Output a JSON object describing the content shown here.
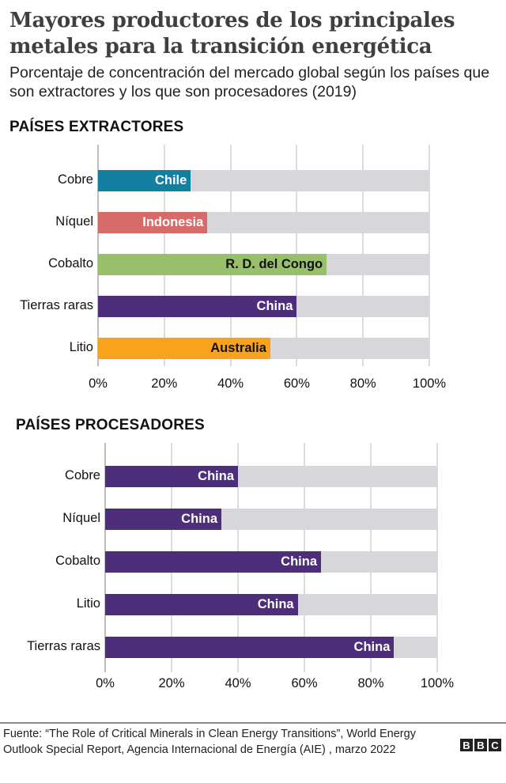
{
  "header": {
    "title": "Mayores productores de los principales metales para la transición energética",
    "subtitle": "Porcentaje de concentración del mercado global según los países que son extractores y los que son procesadores (2019)"
  },
  "sections": {
    "extractors": "PAÍSES EXTRACTORES",
    "processors": "PAÍSES PROCESADORES"
  },
  "colors": {
    "track": "#d6d6db",
    "chile": "#1380a1",
    "indonesia": "#d66b6a",
    "congo": "#98c06b",
    "china": "#4c2e7b",
    "australia": "#faa21b"
  },
  "chart_data": [
    {
      "type": "bar",
      "orientation": "horizontal",
      "title": "PAÍSES EXTRACTORES",
      "categories": [
        "Cobre",
        "Níquel",
        "Cobalto",
        "Tierras raras",
        "Litio"
      ],
      "values": [
        28,
        33,
        69,
        60,
        52
      ],
      "bar_labels": [
        "Chile",
        "Indonesia",
        "R. D. del Congo",
        "China",
        "Australia"
      ],
      "xlabel": "",
      "ylabel": "",
      "xlim": [
        0,
        100
      ],
      "xticks": [
        "0%",
        "20%",
        "40%",
        "60%",
        "80%",
        "100%"
      ],
      "grid": true
    },
    {
      "type": "bar",
      "orientation": "horizontal",
      "title": "PAÍSES PROCESADORES",
      "categories": [
        "Cobre",
        "Níquel",
        "Cobalto",
        "Litio",
        "Tierras raras"
      ],
      "values": [
        40,
        35,
        65,
        58,
        87
      ],
      "bar_labels": [
        "China",
        "China",
        "China",
        "China",
        "China"
      ],
      "xlabel": "",
      "ylabel": "",
      "xlim": [
        0,
        100
      ],
      "xticks": [
        "0%",
        "20%",
        "40%",
        "60%",
        "80%",
        "100%"
      ],
      "grid": true
    }
  ],
  "footer": {
    "source": "Fuente: “The Role of Critical Minerals in Clean Energy Transitions”, World Energy Outlook Special Report, Agencia Internacional de Energía (AIE) , marzo 2022",
    "logo": [
      "B",
      "B",
      "C"
    ]
  }
}
